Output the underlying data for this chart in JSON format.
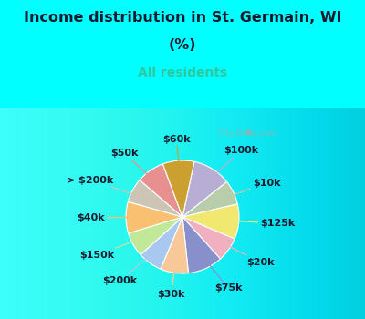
{
  "title_line1": "Income distribution in St. Germain, WI",
  "title_line2": "(%)",
  "subtitle": "All residents",
  "title_color": "#1a1a2e",
  "subtitle_color": "#2ec8a0",
  "background_top": "#00ffff",
  "watermark": "City-Data.com",
  "labels": [
    "$100k",
    "$10k",
    "$125k",
    "$20k",
    "$75k",
    "$30k",
    "$200k",
    "$150k",
    "$40k",
    "> $200k",
    "$50k",
    "$60k"
  ],
  "values": [
    11,
    7,
    10,
    7,
    10,
    8,
    7,
    7,
    9,
    7,
    8,
    9
  ],
  "colors": [
    "#b8aed4",
    "#b8ceaa",
    "#f0e870",
    "#f0b0c0",
    "#8890cc",
    "#f8c898",
    "#a8c8f0",
    "#c0e898",
    "#f8c070",
    "#ccc4b4",
    "#e89090",
    "#cca030"
  ],
  "label_fontsize": 8,
  "figsize": [
    4.0,
    3.5
  ],
  "dpi": 100,
  "chart_bg_color1": "#e8f8f0",
  "chart_bg_color2": "#d0f0f8"
}
